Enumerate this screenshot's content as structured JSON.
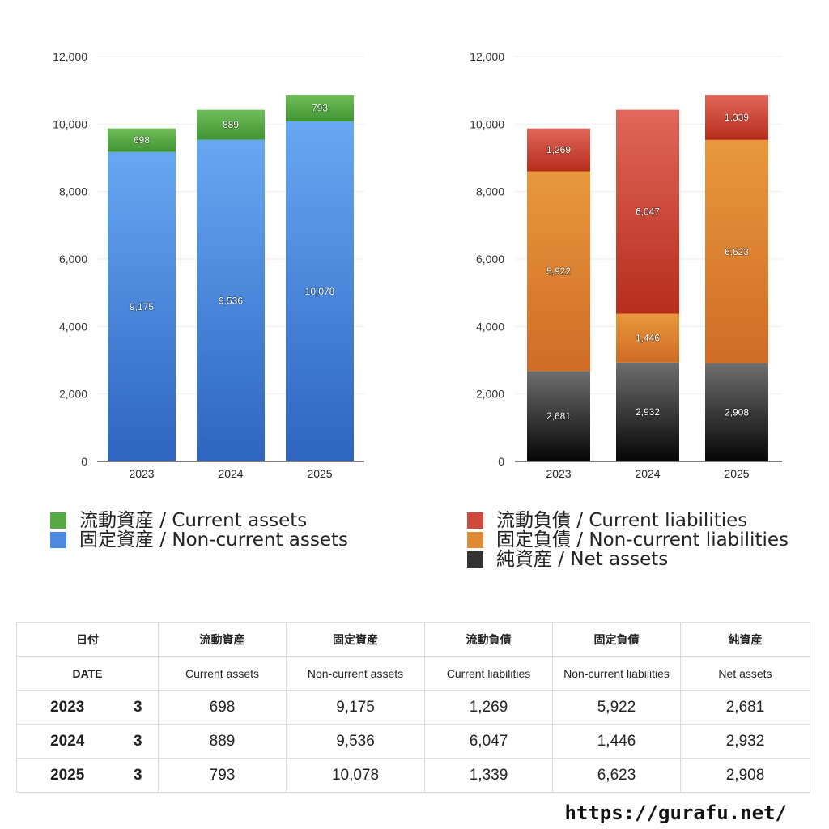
{
  "chart_data": [
    {
      "type": "bar",
      "stacked": true,
      "categories": [
        "2023",
        "2024",
        "2025"
      ],
      "ylim": [
        0,
        12000
      ],
      "yticks": [
        0,
        2000,
        4000,
        6000,
        8000,
        10000,
        12000
      ],
      "ytick_labels": [
        "0",
        "2,000",
        "4,000",
        "6,000",
        "8,000",
        "10,000",
        "12,000"
      ],
      "grid": true,
      "legend_placement": "bottom",
      "series": [
        {
          "name": "固定資産 / Non-current assets",
          "values": [
            9175,
            9536,
            10078
          ],
          "labels": [
            "9,175",
            "9,536",
            "10,078"
          ],
          "color_top": "#66a8f2",
          "color_bottom": "#2e64c0"
        },
        {
          "name": "流動資産 / Current assets",
          "values": [
            698,
            889,
            793
          ],
          "labels": [
            "698",
            "889",
            "793"
          ],
          "color_top": "#6fbf58",
          "color_bottom": "#3f9432"
        }
      ]
    },
    {
      "type": "bar",
      "stacked": true,
      "categories": [
        "2023",
        "2024",
        "2025"
      ],
      "ylim": [
        0,
        12000
      ],
      "yticks": [
        0,
        2000,
        4000,
        6000,
        8000,
        10000,
        12000
      ],
      "ytick_labels": [
        "0",
        "2,000",
        "4,000",
        "6,000",
        "8,000",
        "10,000",
        "12,000"
      ],
      "grid": true,
      "legend_placement": "bottom",
      "series": [
        {
          "name": "純資産 / Net assets",
          "values": [
            2681,
            2932,
            2908
          ],
          "labels": [
            "2,681",
            "2,932",
            "2,908"
          ],
          "color_top": "#6e6e6e",
          "color_bottom": "#050505"
        },
        {
          "name": "固定負債 / Non-current liabilities",
          "values": [
            5922,
            1446,
            6623
          ],
          "labels": [
            "5,922",
            "1,446",
            "6,623"
          ],
          "color_top": "#e8983c",
          "color_bottom": "#cf6c26"
        },
        {
          "name": "流動負債 / Current liabilities",
          "values": [
            1269,
            6047,
            1339
          ],
          "labels": [
            "1,269",
            "6,047",
            "1,339"
          ],
          "color_top": "#e0675a",
          "color_bottom": "#b72d1c"
        }
      ]
    }
  ],
  "legends": {
    "left": [
      {
        "label": "流動資産 / Current assets",
        "color": "#55aa44"
      },
      {
        "label": "固定資産 / Non-current assets",
        "color": "#4a8ae0"
      }
    ],
    "right": [
      {
        "label": "流動負債 / Current liabilities",
        "color": "#cf4a3a"
      },
      {
        "label": "固定負債 / Non-current liabilities",
        "color": "#e08a36"
      },
      {
        "label": "純資産 / Net assets",
        "color": "#333333"
      }
    ]
  },
  "table": {
    "header_jp": {
      "date": "日付",
      "current_assets": "流動資産",
      "non_current_assets": "固定資産",
      "current_liabilities": "流動負債",
      "non_current_liabilities": "固定負債",
      "net_assets": "純資産"
    },
    "header_en": {
      "date": "DATE",
      "current_assets": "Current assets",
      "non_current_assets": "Non-current assets",
      "current_liabilities": "Current liabilities",
      "non_current_liabilities": "Non-current liabilities",
      "net_assets": "Net assets"
    },
    "rows": [
      {
        "year": "2023",
        "month": "3",
        "current_assets": "698",
        "non_current_assets": "9,175",
        "current_liabilities": "1,269",
        "non_current_liabilities": "5,922",
        "net_assets": "2,681"
      },
      {
        "year": "2024",
        "month": "3",
        "current_assets": "889",
        "non_current_assets": "9,536",
        "current_liabilities": "6,047",
        "non_current_liabilities": "1,446",
        "net_assets": "2,932"
      },
      {
        "year": "2025",
        "month": "3",
        "current_assets": "793",
        "non_current_assets": "10,078",
        "current_liabilities": "1,339",
        "non_current_liabilities": "6,623",
        "net_assets": "2,908"
      }
    ]
  },
  "footer": {
    "url": "https://gurafu.net/"
  }
}
